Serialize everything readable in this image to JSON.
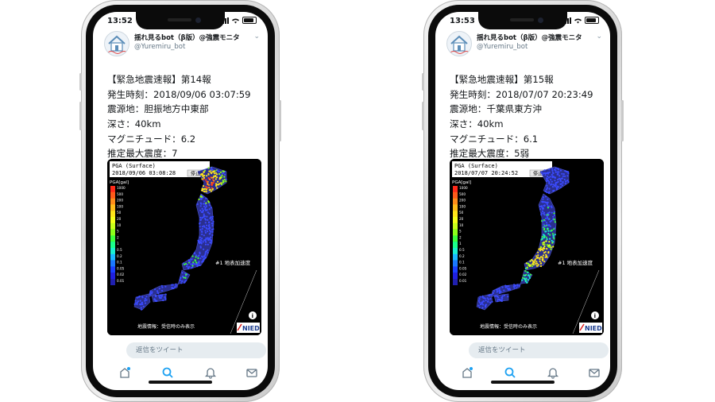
{
  "phones": [
    {
      "status_time": "13:52",
      "account": {
        "display_name": "揺れ見るbot（β版）@強震モニタ",
        "handle": "@Yuremiru_bot"
      },
      "tweet_lines": [
        "【緊急地震速報】第14報",
        "発生時刻：2018/09/06 03:07:59",
        "震源地：胆振地方中東部",
        "深さ：40km",
        "マグニチュード：6.2",
        "推定最大震度：7"
      ],
      "map": {
        "title": "PGA (Surface)",
        "timestamp": "2018/09/06 03:08:28",
        "stop_button": "停止",
        "legend_title": "PGA[gal]",
        "legend_ticks": [
          "1000",
          "500",
          "200",
          "100",
          "50",
          "20",
          "10",
          "5",
          "2",
          "1",
          "0.5",
          "0.2",
          "0.1",
          "0.05",
          "0.02",
          "0.01"
        ],
        "layer_label": "#1 地表加速度",
        "footer_note": "地震情報：受信時のみ表示",
        "logo": "NIED"
      },
      "reply_placeholder": "返信をツイート",
      "tabs": [
        "home",
        "search",
        "notifications",
        "messages"
      ],
      "accent_color": "#1da1f2"
    },
    {
      "status_time": "13:53",
      "account": {
        "display_name": "揺れ見るbot（β版）@強震モニタ",
        "handle": "@Yuremiru_bot"
      },
      "tweet_lines": [
        "【緊急地震速報】第15報",
        "発生時刻：2018/07/07 20:23:49",
        "震源地：千葉県東方沖",
        "深さ：40km",
        "マグニチュード：6.1",
        "推定最大震度：5弱"
      ],
      "map": {
        "title": "PGA (Surface)",
        "timestamp": "2018/07/07 20:24:52",
        "stop_button": "停止",
        "legend_title": "PGA[gal]",
        "legend_ticks": [
          "1000",
          "500",
          "200",
          "100",
          "50",
          "20",
          "10",
          "5",
          "2",
          "1",
          "0.5",
          "0.2",
          "0.1",
          "0.05",
          "0.02",
          "0.01"
        ],
        "layer_label": "#1 地表加速度",
        "footer_note": "地震情報：受信時のみ表示",
        "logo": "NIED"
      },
      "reply_placeholder": "返信をツイート",
      "tabs": [
        "home",
        "search",
        "notifications",
        "messages"
      ],
      "accent_color": "#1da1f2"
    }
  ]
}
